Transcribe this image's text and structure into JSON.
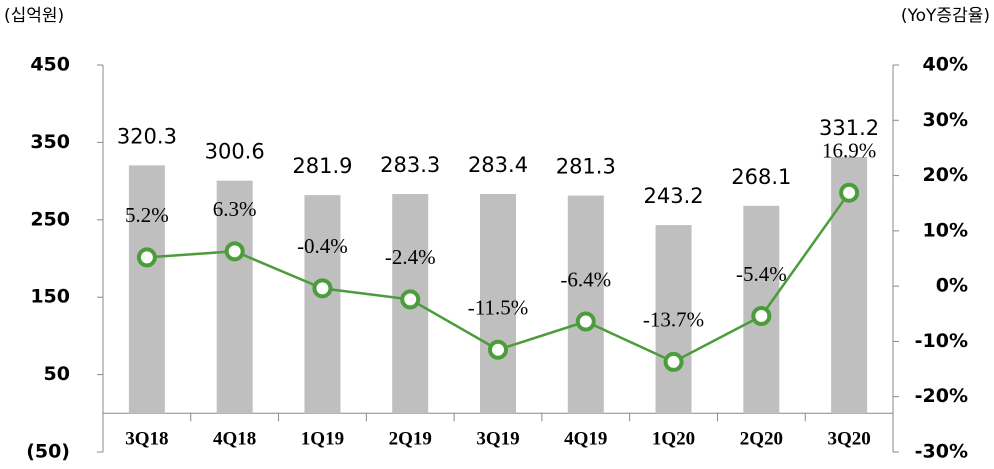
{
  "chart_data": {
    "type": "combo",
    "y_unit": "(십억원)",
    "y2_unit": "(YoY증감율)",
    "categories": [
      "3Q18",
      "4Q18",
      "1Q19",
      "2Q19",
      "3Q19",
      "4Q19",
      "1Q20",
      "2Q20",
      "3Q20"
    ],
    "series": [
      {
        "type": "bar",
        "color": "#bfbfbf",
        "values": [
          320.3,
          300.6,
          281.9,
          283.3,
          283.4,
          281.3,
          243.2,
          268.1,
          331.2
        ]
      },
      {
        "type": "line",
        "axis": "y2",
        "color": "#4b9c3a",
        "values": [
          5.2,
          6.3,
          -0.4,
          -2.4,
          -11.5,
          -6.4,
          -13.7,
          -5.4,
          16.9
        ],
        "value_labels": [
          "5.2%",
          "6.3%",
          "-0.4%",
          "-2.4%",
          "-11.5%",
          "-6.4%",
          "-13.7%",
          "-5.4%",
          "16.9%"
        ]
      }
    ],
    "ylim": [
      -50,
      450
    ],
    "yticks": [
      450,
      350,
      250,
      150,
      50,
      {
        "value": -50,
        "label": "(50)"
      }
    ],
    "y2lim": [
      -30,
      40
    ],
    "y2ticks": [
      {
        "value": 40,
        "label": "40%"
      },
      {
        "value": 30,
        "label": "30%"
      },
      {
        "value": 20,
        "label": "20%"
      },
      {
        "value": 10,
        "label": "10%"
      },
      {
        "value": 0,
        "label": "0%"
      },
      {
        "value": -10,
        "label": "-10%"
      },
      {
        "value": -20,
        "label": "-20%"
      },
      {
        "value": -30,
        "label": "-30%"
      }
    ]
  }
}
